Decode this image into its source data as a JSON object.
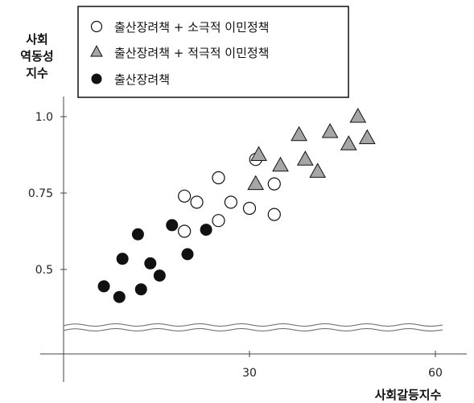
{
  "chart_data": {
    "type": "scatter",
    "ylabel_lines": [
      "사회",
      "역동성",
      "지수"
    ],
    "xlabel": "사회갈등지수",
    "x_ticks": [
      {
        "value": 30,
        "label": "30"
      },
      {
        "value": 60,
        "label": "60"
      }
    ],
    "y_ticks": [
      {
        "value": 0.5,
        "label": "0.5"
      },
      {
        "value": 0.75,
        "label": "0.75"
      },
      {
        "value": 1.0,
        "label": "1.0"
      }
    ],
    "xlim": [
      0,
      65
    ],
    "ylim_visible": [
      0.4,
      1.05
    ],
    "axis_break": true,
    "grid": false,
    "legend_position": "top-left",
    "series": [
      {
        "name": "출산장려책 + 소극적 이민정책",
        "marker": "circle-open",
        "color": "#ffffff",
        "points": [
          [
            19.5,
            0.74
          ],
          [
            21.5,
            0.72
          ],
          [
            19.5,
            0.625
          ],
          [
            25,
            0.8
          ],
          [
            27,
            0.72
          ],
          [
            25,
            0.66
          ],
          [
            30,
            0.7
          ],
          [
            31,
            0.86
          ],
          [
            34,
            0.78
          ],
          [
            34,
            0.68
          ]
        ]
      },
      {
        "name": "출산장려책 + 적극적 이민정책",
        "marker": "triangle",
        "color": "#a6a6a6",
        "points": [
          [
            31,
            0.78
          ],
          [
            31.5,
            0.875
          ],
          [
            35,
            0.84
          ],
          [
            38,
            0.94
          ],
          [
            39,
            0.86
          ],
          [
            41,
            0.82
          ],
          [
            43,
            0.95
          ],
          [
            46,
            0.91
          ],
          [
            47.5,
            1.0
          ],
          [
            49,
            0.93
          ]
        ]
      },
      {
        "name": "출산장려책",
        "marker": "circle-filled",
        "color": "#111111",
        "points": [
          [
            6.5,
            0.445
          ],
          [
            9,
            0.41
          ],
          [
            9.5,
            0.535
          ],
          [
            12,
            0.615
          ],
          [
            12.5,
            0.435
          ],
          [
            14,
            0.52
          ],
          [
            15.5,
            0.48
          ],
          [
            17.5,
            0.645
          ],
          [
            20,
            0.55
          ],
          [
            23,
            0.63
          ]
        ]
      }
    ]
  }
}
